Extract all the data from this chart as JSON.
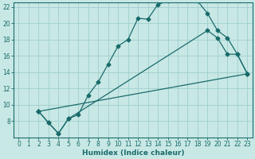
{
  "title": "",
  "xlabel": "Humidex (Indice chaleur)",
  "xlim": [
    0,
    23
  ],
  "ylim": [
    6,
    22
  ],
  "yticks": [
    8,
    10,
    12,
    14,
    16,
    18,
    20,
    22
  ],
  "xticks": [
    0,
    1,
    2,
    3,
    4,
    5,
    6,
    7,
    8,
    9,
    10,
    11,
    12,
    13,
    14,
    15,
    16,
    17,
    18,
    19,
    20,
    21,
    22,
    23
  ],
  "background_color": "#c8e8e5",
  "grid_color": "#9fcfcc",
  "line_color": "#1a6b6b",
  "line1_x": [
    2,
    3,
    4,
    5,
    6,
    7,
    8,
    9,
    10,
    11,
    12,
    13,
    14,
    15,
    16,
    17,
    18,
    19,
    20,
    21,
    22,
    23
  ],
  "line1_y": [
    9.2,
    7.8,
    6.5,
    8.3,
    8.8,
    11.2,
    12.8,
    15.0,
    17.2,
    18.0,
    20.6,
    20.5,
    22.3,
    22.7,
    23.0,
    23.0,
    22.7,
    21.2,
    19.1,
    18.2,
    16.2,
    13.8
  ],
  "line2_x": [
    2,
    3,
    4,
    5,
    19,
    20,
    21,
    22,
    23
  ],
  "line2_y": [
    9.2,
    7.8,
    6.5,
    8.3,
    19.1,
    18.2,
    16.2,
    16.2,
    13.8
  ],
  "line3_x": [
    2,
    23
  ],
  "line3_y": [
    9.2,
    13.8
  ]
}
